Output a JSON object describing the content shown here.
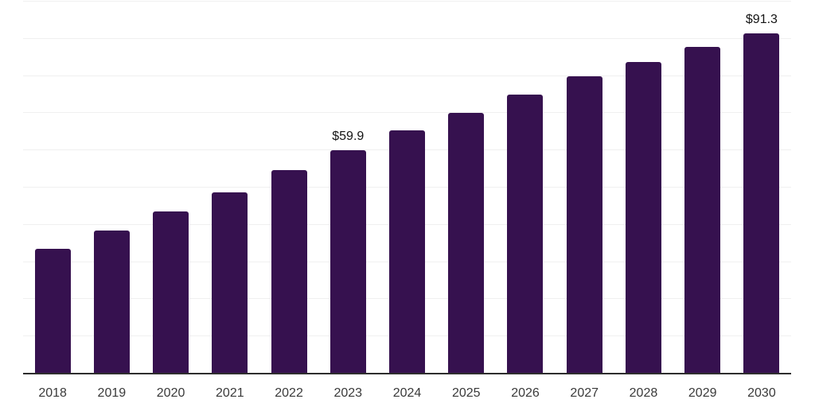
{
  "chart_data": {
    "type": "bar",
    "categories": [
      "2018",
      "2019",
      "2020",
      "2021",
      "2022",
      "2023",
      "2024",
      "2025",
      "2026",
      "2027",
      "2028",
      "2029",
      "2030"
    ],
    "values": [
      33.3,
      38.2,
      43.4,
      48.6,
      54.4,
      59.9,
      65.2,
      69.8,
      74.9,
      79.8,
      83.6,
      87.7,
      91.3
    ],
    "data_labels": [
      "",
      "",
      "",
      "",
      "",
      "$59.9",
      "",
      "",
      "",
      "",
      "",
      "",
      "$91.3"
    ],
    "ylim": [
      0,
      100
    ],
    "gridline_step": 10,
    "grid": true,
    "legend": "none",
    "y_axis_labels_visible": false,
    "bar_color": "#36114F",
    "gridline_color": "#f0f0f0",
    "axis_line_color": "#2e2e2e",
    "tick_label_color": "#3a3a3a",
    "data_label_color": "#141414",
    "background_color": "#ffffff"
  }
}
